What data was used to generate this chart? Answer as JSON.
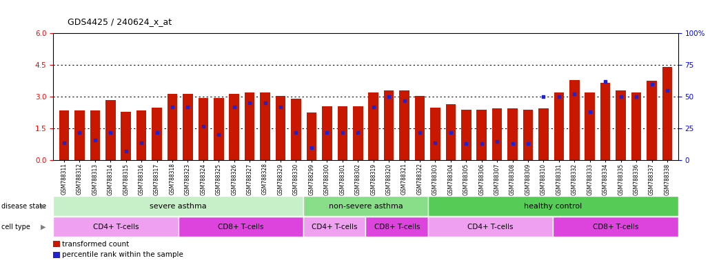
{
  "title": "GDS4425 / 240624_x_at",
  "samples": [
    "GSM788311",
    "GSM788312",
    "GSM788313",
    "GSM788314",
    "GSM788315",
    "GSM788316",
    "GSM788317",
    "GSM788318",
    "GSM788323",
    "GSM788324",
    "GSM788325",
    "GSM788326",
    "GSM788327",
    "GSM788328",
    "GSM788329",
    "GSM788330",
    "GSM788299",
    "GSM788300",
    "GSM788301",
    "GSM788302",
    "GSM788319",
    "GSM788320",
    "GSM788321",
    "GSM788322",
    "GSM788303",
    "GSM788304",
    "GSM788305",
    "GSM788306",
    "GSM788307",
    "GSM788308",
    "GSM788309",
    "GSM788310",
    "GSM788331",
    "GSM788332",
    "GSM788333",
    "GSM788334",
    "GSM788335",
    "GSM788336",
    "GSM788337",
    "GSM788338"
  ],
  "transformed_count": [
    2.35,
    2.35,
    2.35,
    2.85,
    2.3,
    2.35,
    2.5,
    3.15,
    3.15,
    2.95,
    2.95,
    3.15,
    3.2,
    3.2,
    3.05,
    2.9,
    2.25,
    2.55,
    2.55,
    2.55,
    3.2,
    3.3,
    3.3,
    3.05,
    2.5,
    2.65,
    2.4,
    2.4,
    2.45,
    2.45,
    2.4,
    2.45,
    3.2,
    3.8,
    3.2,
    3.65,
    3.3,
    3.2,
    3.75,
    4.4
  ],
  "percentile_rank": [
    14,
    22,
    16,
    22,
    7,
    14,
    22,
    42,
    42,
    27,
    20,
    42,
    45,
    45,
    42,
    22,
    10,
    22,
    22,
    22,
    42,
    50,
    47,
    22,
    14,
    22,
    13,
    13,
    15,
    13,
    13,
    50,
    50,
    52,
    38,
    62,
    50,
    50,
    60,
    55
  ],
  "ylim_left": [
    0,
    6
  ],
  "ylim_right": [
    0,
    100
  ],
  "yticks_left": [
    0,
    1.5,
    3.0,
    4.5,
    6
  ],
  "yticks_right": [
    0,
    25,
    50,
    75,
    100
  ],
  "bar_color": "#C81800",
  "marker_color": "#2222CC",
  "disease_state_bands": [
    {
      "label": "severe asthma",
      "start": 0,
      "end": 16,
      "color": "#C8F0C8"
    },
    {
      "label": "non-severe asthma",
      "start": 16,
      "end": 24,
      "color": "#88DD88"
    },
    {
      "label": "healthy control",
      "start": 24,
      "end": 40,
      "color": "#55CC55"
    }
  ],
  "cell_type_bands": [
    {
      "label": "CD4+ T-cells",
      "start": 0,
      "end": 8,
      "color": "#F0A0F0"
    },
    {
      "label": "CD8+ T-cells",
      "start": 8,
      "end": 16,
      "color": "#DD44DD"
    },
    {
      "label": "CD4+ T-cells",
      "start": 16,
      "end": 20,
      "color": "#F0A0F0"
    },
    {
      "label": "CD8+ T-cells",
      "start": 20,
      "end": 24,
      "color": "#DD44DD"
    },
    {
      "label": "CD4+ T-cells",
      "start": 24,
      "end": 32,
      "color": "#F0A0F0"
    },
    {
      "label": "CD8+ T-cells",
      "start": 32,
      "end": 40,
      "color": "#DD44DD"
    }
  ]
}
